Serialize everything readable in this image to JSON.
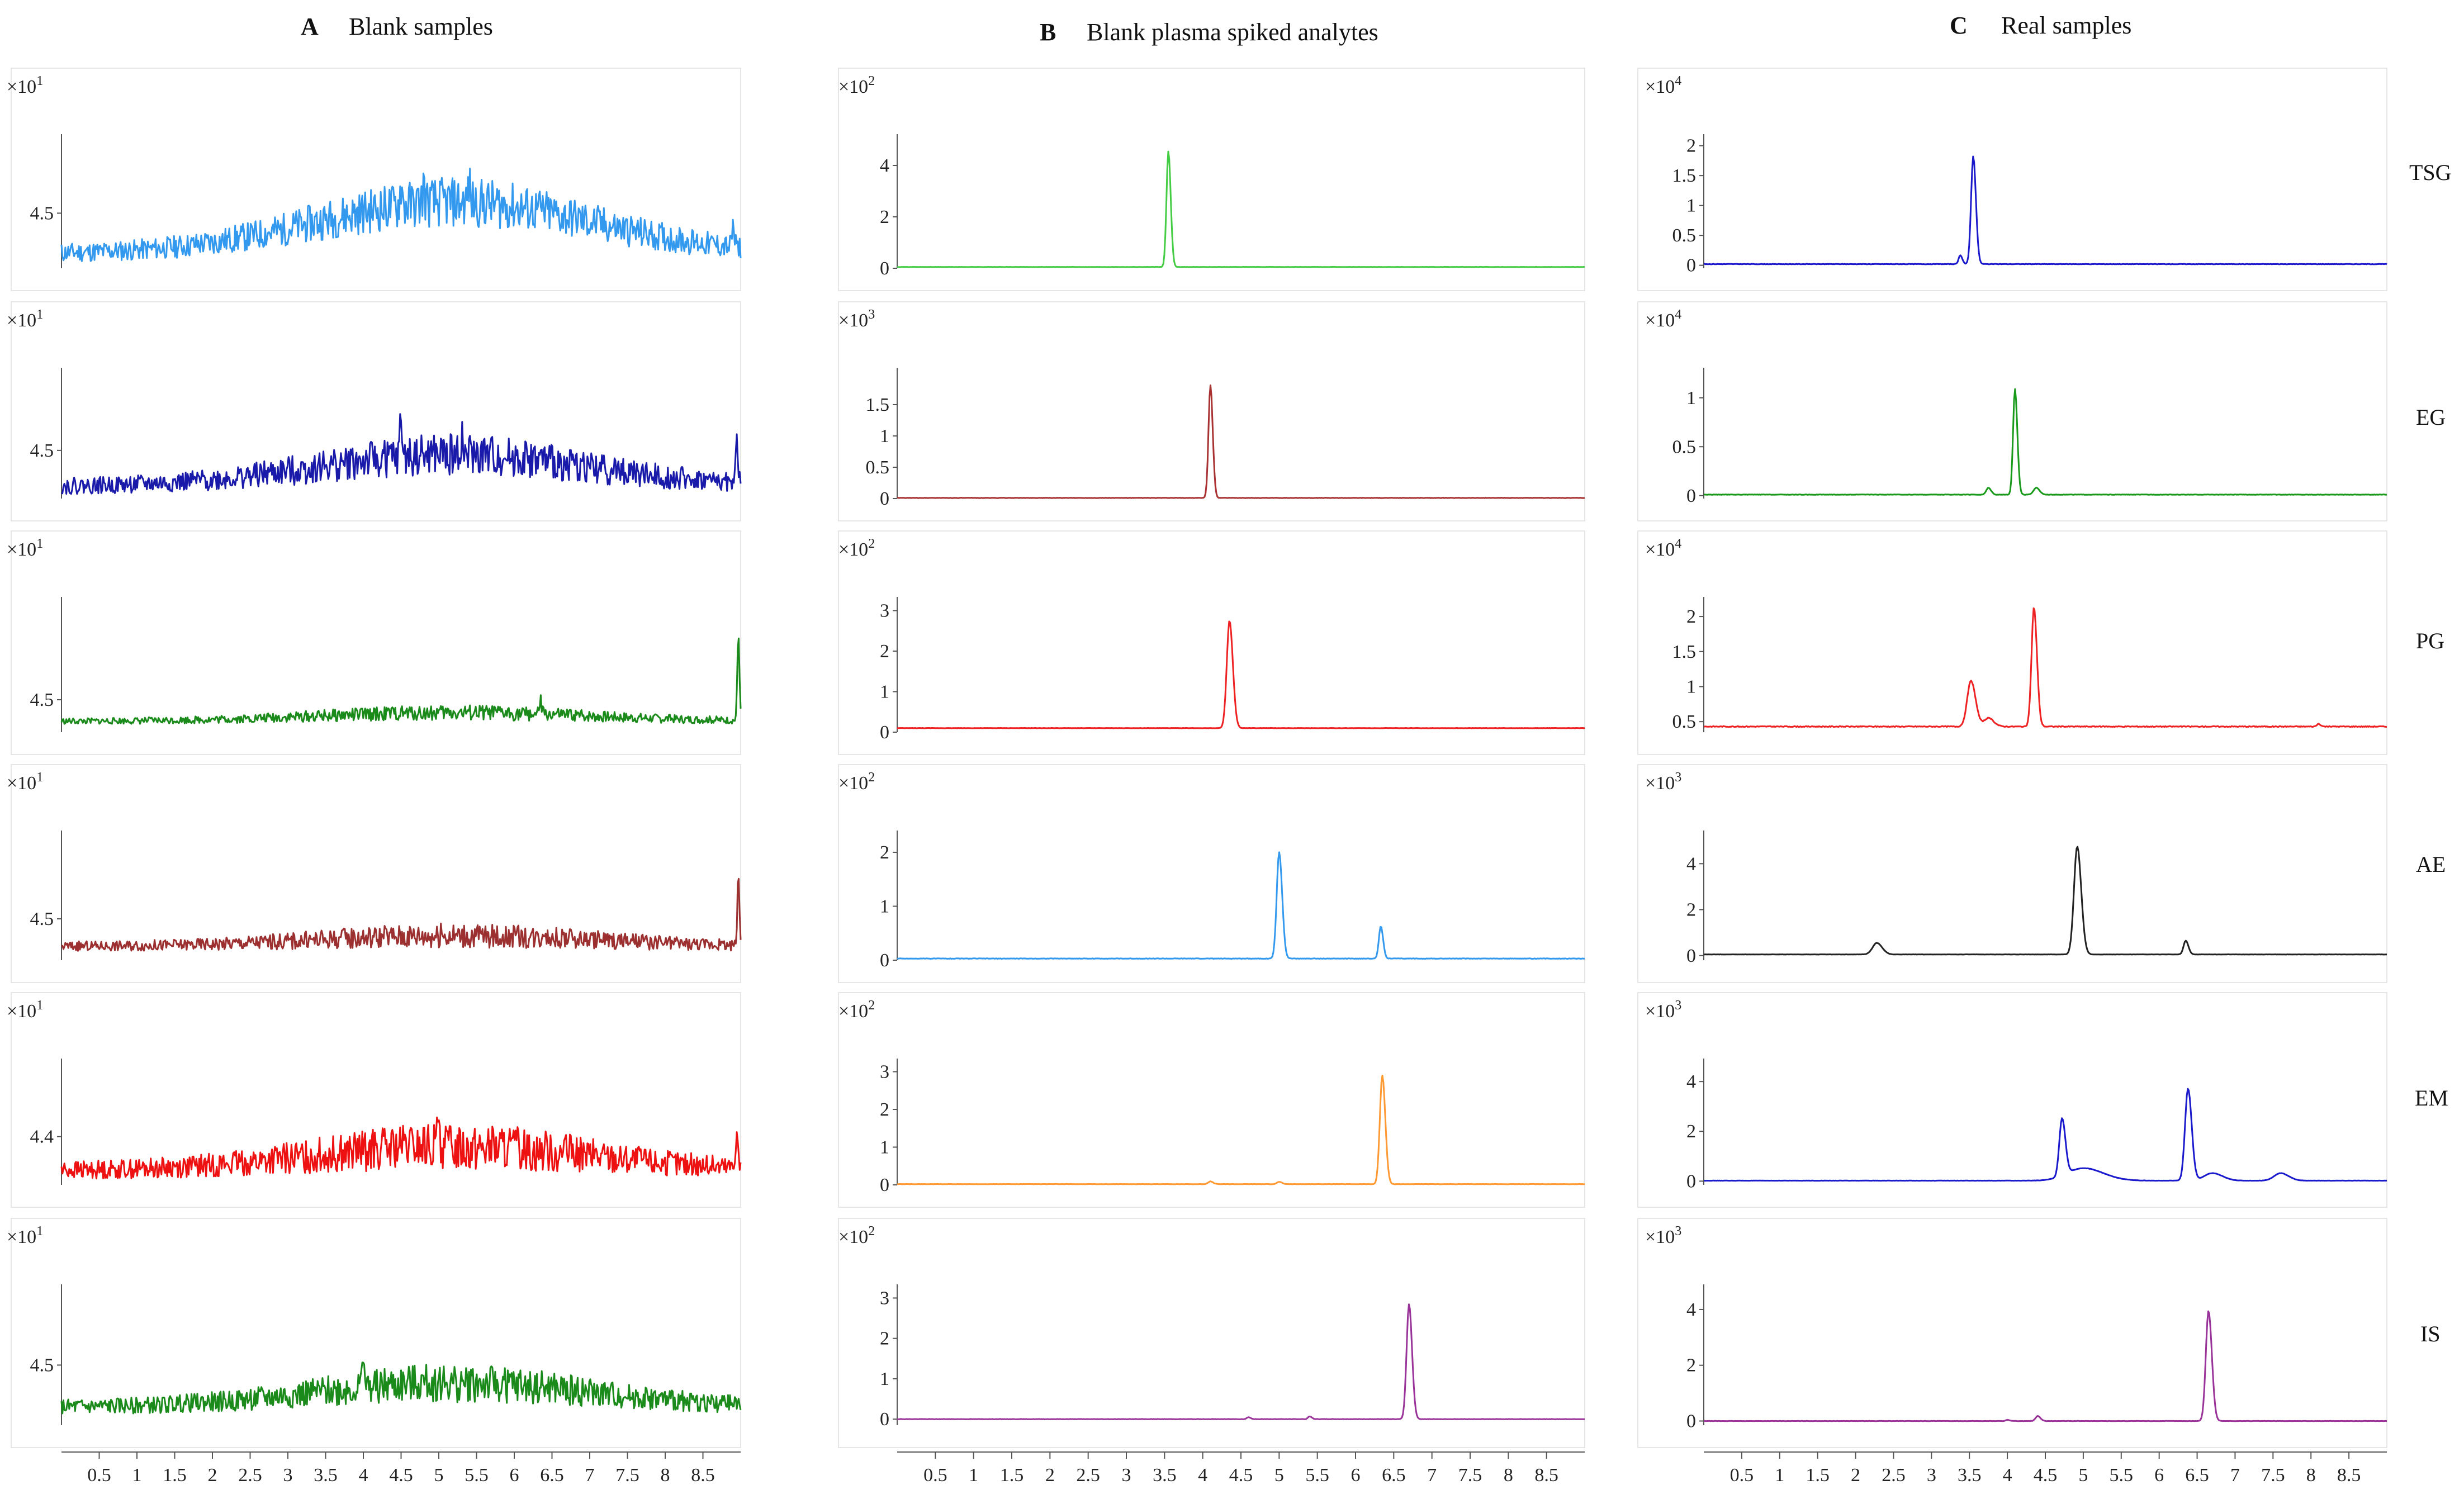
{
  "chart_data": {
    "type": "line",
    "xlabel": "",
    "ylabel": "",
    "xlim": [
      0,
      9
    ],
    "x_ticks": [
      "0.5",
      "1",
      "1.5",
      "2",
      "2.5",
      "3",
      "3.5",
      "4",
      "4.5",
      "5",
      "5.5",
      "6",
      "6.5",
      "7",
      "7.5",
      "8",
      "8.5"
    ],
    "columns": [
      {
        "letter": "A",
        "title": "Blank samples"
      },
      {
        "letter": "B",
        "title": "Blank plasma spiked analytes"
      },
      {
        "letter": "C",
        "title": "Real samples"
      }
    ],
    "rows": [
      "TSG",
      "EG",
      "PG",
      "AE",
      "EM",
      "IS"
    ],
    "panels": [
      {
        "id": "A-TSG",
        "col": 0,
        "row": 0,
        "color": "#3399ee",
        "exp_base": "×10",
        "exp_power": "1",
        "kind": "noise",
        "yticks": [
          {
            "v": 4.5,
            "label": "4.5"
          }
        ],
        "ylim": [
          4.2,
          4.9
        ],
        "base": 4.28,
        "rise": 0.28,
        "noise": 0.085,
        "spikes": [
          [
            4.5,
            0.12
          ],
          [
            4.8,
            0.1
          ],
          [
            5.4,
            0.1
          ],
          [
            8.9,
            0.12
          ]
        ],
        "seed": 11
      },
      {
        "id": "A-EG",
        "col": 0,
        "row": 1,
        "color": "#1a1aaa",
        "exp_base": "×10",
        "exp_power": "1",
        "kind": "noise",
        "yticks": [
          {
            "v": 4.5,
            "label": "4.5"
          }
        ],
        "ylim": [
          4.3,
          4.82
        ],
        "base": 4.35,
        "rise": 0.13,
        "noise": 0.055,
        "spikes": [
          [
            4.5,
            0.16
          ],
          [
            5.3,
            0.08
          ],
          [
            8.95,
            0.18
          ]
        ],
        "seed": 22
      },
      {
        "id": "A-PG",
        "col": 0,
        "row": 2,
        "color": "#1a8a1a",
        "exp_base": "×10",
        "exp_power": "1",
        "kind": "noise",
        "yticks": [
          {
            "v": 4.5,
            "label": "4.5"
          }
        ],
        "ylim": [
          4.35,
          4.95
        ],
        "base": 4.4,
        "rise": 0.04,
        "noise": 0.022,
        "spikes": [
          [
            6.35,
            0.06
          ],
          [
            8.97,
            0.4
          ]
        ],
        "seed": 33
      },
      {
        "id": "A-AE",
        "col": 0,
        "row": 3,
        "color": "#9c2f2f",
        "exp_base": "×10",
        "exp_power": "1",
        "kind": "noise",
        "yticks": [
          {
            "v": 4.5,
            "label": "4.5"
          }
        ],
        "ylim": [
          4.35,
          4.8
        ],
        "base": 4.4,
        "rise": 0.04,
        "noise": 0.028,
        "spikes": [
          [
            6.4,
            0.04
          ],
          [
            8.97,
            0.25
          ]
        ],
        "seed": 44
      },
      {
        "id": "A-EM",
        "col": 0,
        "row": 4,
        "color": "#ee1111",
        "exp_base": "×10",
        "exp_power": "1",
        "kind": "noise",
        "yticks": [
          {
            "v": 4.4,
            "label": "4.4"
          }
        ],
        "ylim": [
          4.3,
          4.55
        ],
        "base": 4.33,
        "rise": 0.05,
        "noise": 0.03,
        "spikes": [
          [
            5.0,
            0.07
          ],
          [
            8.95,
            0.09
          ]
        ],
        "seed": 55
      },
      {
        "id": "A-IS",
        "col": 0,
        "row": 5,
        "color": "#1a8a1a",
        "exp_base": "×10",
        "exp_power": "1",
        "kind": "noise",
        "yticks": [
          {
            "v": 4.5,
            "label": "4.5"
          }
        ],
        "ylim": [
          4.3,
          4.75
        ],
        "base": 4.36,
        "rise": 0.08,
        "noise": 0.04,
        "spikes": [
          [
            4.0,
            0.14
          ]
        ],
        "seed": 66
      },
      {
        "id": "B-TSG",
        "col": 1,
        "row": 0,
        "color": "#44cc44",
        "exp_base": "×10",
        "exp_power": "2",
        "kind": "peaks",
        "yticks": [
          {
            "v": 0,
            "label": "0"
          },
          {
            "v": 2,
            "label": "2"
          },
          {
            "v": 4,
            "label": "4"
          }
        ],
        "ylim": [
          0,
          5
        ],
        "base": 0.05,
        "peaks": [
          [
            3.55,
            4.5,
            0.035
          ]
        ],
        "noise": 0.005,
        "seed": 71
      },
      {
        "id": "B-EG",
        "col": 1,
        "row": 1,
        "color": "#a83232",
        "exp_base": "×10",
        "exp_power": "3",
        "kind": "peaks",
        "yticks": [
          {
            "v": 0,
            "label": "0"
          },
          {
            "v": 0.5,
            "label": "0.5"
          },
          {
            "v": 1,
            "label": "1"
          },
          {
            "v": 1.5,
            "label": "1.5"
          }
        ],
        "ylim": [
          0,
          2
        ],
        "base": 0.01,
        "peaks": [
          [
            4.1,
            1.8,
            0.035
          ]
        ],
        "noise": 0.003,
        "seed": 72
      },
      {
        "id": "B-PG",
        "col": 1,
        "row": 2,
        "color": "#ee2222",
        "exp_base": "×10",
        "exp_power": "2",
        "kind": "peaks",
        "yticks": [
          {
            "v": 0,
            "label": "0"
          },
          {
            "v": 1,
            "label": "1"
          },
          {
            "v": 2,
            "label": "2"
          },
          {
            "v": 3,
            "label": "3"
          }
        ],
        "ylim": [
          0,
          3.2
        ],
        "base": 0.1,
        "peaks": [
          [
            4.35,
            2.65,
            0.05
          ]
        ],
        "noise": 0.004,
        "seed": 73
      },
      {
        "id": "B-AE",
        "col": 1,
        "row": 3,
        "color": "#3399ee",
        "exp_base": "×10",
        "exp_power": "2",
        "kind": "peaks",
        "yticks": [
          {
            "v": 0,
            "label": "0"
          },
          {
            "v": 1,
            "label": "1"
          },
          {
            "v": 2,
            "label": "2"
          }
        ],
        "ylim": [
          0,
          2.3
        ],
        "base": 0.03,
        "peaks": [
          [
            5.0,
            1.97,
            0.045
          ],
          [
            6.33,
            0.6,
            0.035
          ]
        ],
        "noise": 0.004,
        "seed": 74
      },
      {
        "id": "B-EM",
        "col": 1,
        "row": 4,
        "color": "#ff9933",
        "exp_base": "×10",
        "exp_power": "2",
        "kind": "peaks",
        "yticks": [
          {
            "v": 0,
            "label": "0"
          },
          {
            "v": 1,
            "label": "1"
          },
          {
            "v": 2,
            "label": "2"
          },
          {
            "v": 3,
            "label": "3"
          }
        ],
        "ylim": [
          0,
          3.2
        ],
        "base": 0.02,
        "peaks": [
          [
            6.35,
            2.88,
            0.045
          ],
          [
            4.1,
            0.07,
            0.04
          ],
          [
            5.0,
            0.06,
            0.04
          ]
        ],
        "noise": 0.004,
        "seed": 75
      },
      {
        "id": "B-IS",
        "col": 1,
        "row": 5,
        "color": "#993399",
        "exp_base": "×10",
        "exp_power": "2",
        "kind": "peaks",
        "yticks": [
          {
            "v": 0,
            "label": "0"
          },
          {
            "v": 1,
            "label": "1"
          },
          {
            "v": 2,
            "label": "2"
          },
          {
            "v": 3,
            "label": "3"
          }
        ],
        "ylim": [
          -0.15,
          3.2
        ],
        "base": 0.0,
        "peaks": [
          [
            6.7,
            2.85,
            0.045
          ],
          [
            4.6,
            0.05,
            0.03
          ],
          [
            5.4,
            0.07,
            0.03
          ]
        ],
        "noise": 0.004,
        "seed": 76
      },
      {
        "id": "C-TSG",
        "col": 2,
        "row": 0,
        "color": "#1a1acc",
        "exp_base": "×10",
        "exp_power": "4",
        "kind": "peaks",
        "yticks": [
          {
            "v": 0,
            "label": "0"
          },
          {
            "v": 0.5,
            "label": "0.5"
          },
          {
            "v": 1,
            "label": "1"
          },
          {
            "v": 1.5,
            "label": "1.5"
          },
          {
            "v": 2,
            "label": "2"
          }
        ],
        "ylim": [
          -0.05,
          2.1
        ],
        "base": 0.02,
        "peaks": [
          [
            3.55,
            1.8,
            0.04
          ],
          [
            3.38,
            0.15,
            0.03
          ]
        ],
        "noise": 0.004,
        "seed": 81
      },
      {
        "id": "C-EG",
        "col": 2,
        "row": 1,
        "color": "#1a9a1a",
        "exp_base": "×10",
        "exp_power": "4",
        "kind": "peaks",
        "yticks": [
          {
            "v": 0,
            "label": "0"
          },
          {
            "v": 0.5,
            "label": "0.5"
          },
          {
            "v": 1,
            "label": "1"
          }
        ],
        "ylim": [
          -0.03,
          1.25
        ],
        "base": 0.01,
        "peaks": [
          [
            4.1,
            1.08,
            0.035
          ],
          [
            3.75,
            0.07,
            0.04
          ],
          [
            4.38,
            0.07,
            0.05
          ]
        ],
        "noise": 0.002,
        "seed": 82
      },
      {
        "id": "C-PG",
        "col": 2,
        "row": 2,
        "color": "#ee2222",
        "exp_base": "×10",
        "exp_power": "4",
        "kind": "peaks",
        "yticks": [
          {
            "v": 0.5,
            "label": "0.5"
          },
          {
            "v": 1,
            "label": "1"
          },
          {
            "v": 1.5,
            "label": "1.5"
          },
          {
            "v": 2,
            "label": "2"
          }
        ],
        "ylim": [
          0.35,
          2.2
        ],
        "base": 0.43,
        "peaks": [
          [
            4.35,
            1.7,
            0.045
          ],
          [
            3.52,
            0.65,
            0.07
          ],
          [
            3.75,
            0.12,
            0.08
          ],
          [
            8.1,
            0.04,
            0.03
          ]
        ],
        "noise": 0.006,
        "seed": 83
      },
      {
        "id": "C-AE",
        "col": 2,
        "row": 3,
        "color": "#222222",
        "exp_base": "×10",
        "exp_power": "3",
        "kind": "peaks",
        "yticks": [
          {
            "v": 0,
            "label": "0"
          },
          {
            "v": 2,
            "label": "2"
          },
          {
            "v": 4,
            "label": "4"
          }
        ],
        "ylim": [
          -0.2,
          5.2
        ],
        "base": 0.05,
        "peaks": [
          [
            4.92,
            4.7,
            0.06
          ],
          [
            2.28,
            0.5,
            0.08
          ],
          [
            6.35,
            0.6,
            0.04
          ]
        ],
        "noise": 0.005,
        "seed": 84
      },
      {
        "id": "C-EM",
        "col": 2,
        "row": 4,
        "color": "#1a1acc",
        "exp_base": "×10",
        "exp_power": "3",
        "kind": "peaks",
        "yticks": [
          {
            "v": 0,
            "label": "0"
          },
          {
            "v": 2,
            "label": "2"
          },
          {
            "v": 4,
            "label": "4"
          }
        ],
        "ylim": [
          -0.15,
          4.7
        ],
        "base": 0.02,
        "peaks": [
          [
            4.72,
            2.3,
            0.05
          ],
          [
            6.38,
            3.7,
            0.055
          ],
          [
            5.0,
            0.5,
            0.3
          ],
          [
            6.7,
            0.3,
            0.15
          ],
          [
            7.6,
            0.3,
            0.12
          ]
        ],
        "noise": 0.005,
        "seed": 85
      },
      {
        "id": "C-IS",
        "col": 2,
        "row": 5,
        "color": "#993399",
        "exp_base": "×10",
        "exp_power": "3",
        "kind": "peaks",
        "yticks": [
          {
            "v": 0,
            "label": "0"
          },
          {
            "v": 2,
            "label": "2"
          },
          {
            "v": 4,
            "label": "4"
          }
        ],
        "ylim": [
          -0.15,
          4.7
        ],
        "base": 0.0,
        "peaks": [
          [
            6.65,
            3.95,
            0.05
          ],
          [
            4.4,
            0.18,
            0.04
          ],
          [
            4.0,
            0.04,
            0.03
          ]
        ],
        "noise": 0.004,
        "seed": 86
      }
    ]
  }
}
